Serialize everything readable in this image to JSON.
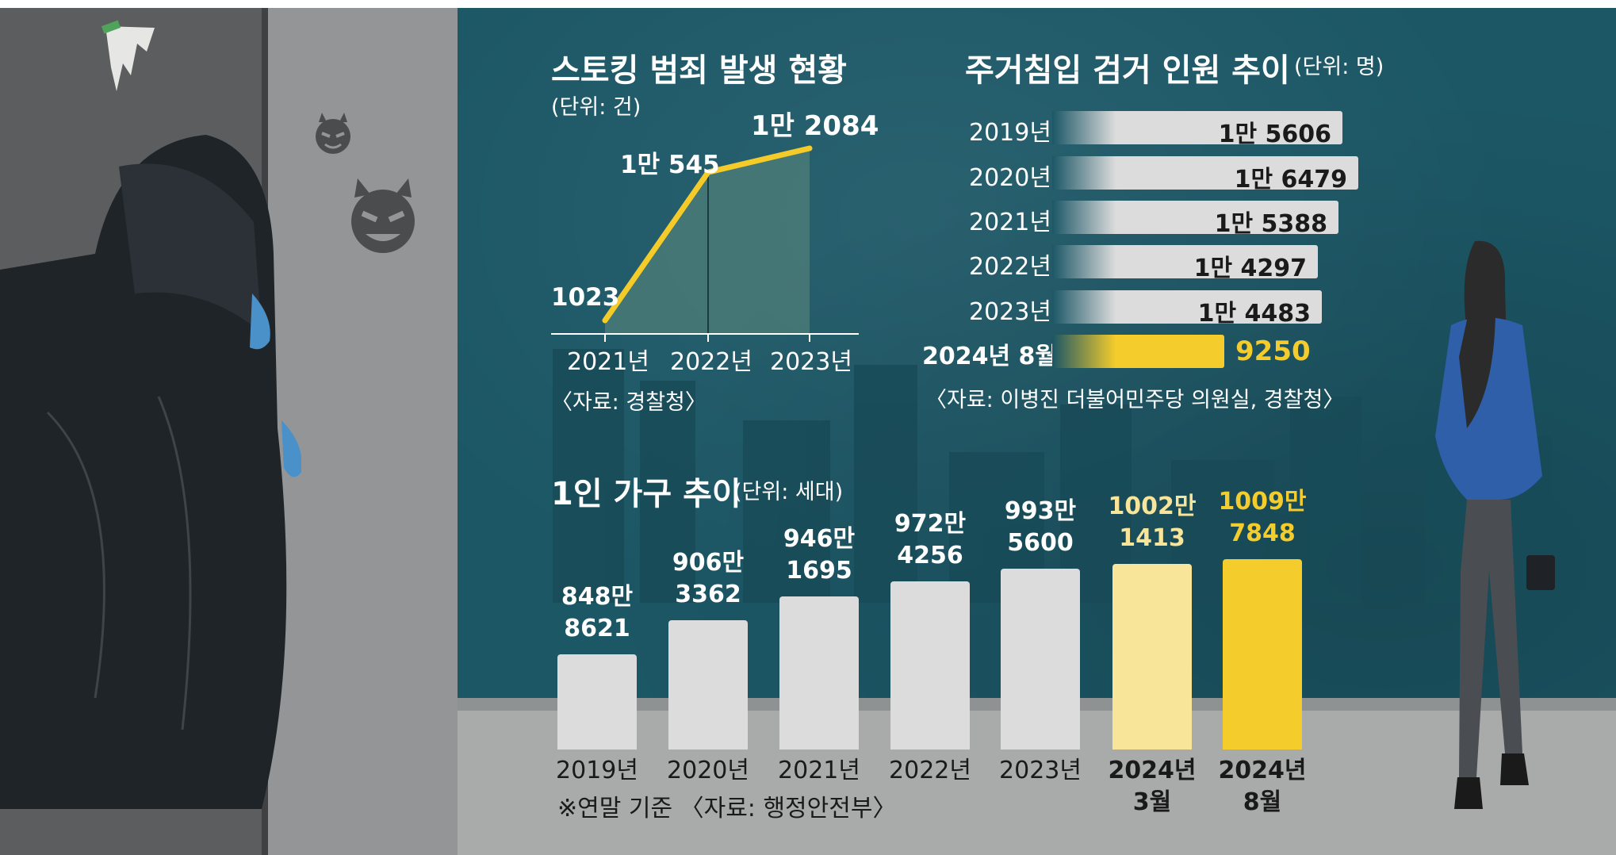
{
  "colors": {
    "panel_bg": "#1c5766",
    "panel_dark": "#143f4b",
    "ground": "#a9abaa",
    "bar_gray": "#dcdcdc",
    "accent_yellow": "#f4cc2c",
    "light_yellow": "#f9e59a",
    "line_yellow": "#f5cb2a",
    "text_dark": "#1a1a1a"
  },
  "stalking": {
    "title": "스토킹 범죄 발생 현황",
    "unit": "(단위: 건)",
    "source": "〈자료: 경찰청〉"
  },
  "intrusion": {
    "title": "주거침입 검거 인원 추이",
    "unit": "(단위: 명)",
    "source": "〈자료: 이병진 더불어민주당 의원실, 경찰청〉"
  },
  "households": {
    "title": "1인 가구 추이",
    "unit": "(단위: 세대)",
    "footnote": "※연말 기준  〈자료: 행정안전부〉"
  },
  "chart_data": [
    {
      "type": "line",
      "title": "스토킹 범죄 발생 현황",
      "unit": "(단위: 건)",
      "categories": [
        "2021년",
        "2022년",
        "2023년"
      ],
      "values": [
        1023,
        10545,
        12084
      ],
      "value_labels": [
        "1023",
        "1만 545",
        "1만 2084"
      ],
      "ylim": [
        0,
        12084
      ]
    },
    {
      "type": "bar",
      "orientation": "horizontal",
      "title": "주거침입 검거 인원 추이",
      "unit": "(단위: 명)",
      "categories": [
        "2019년",
        "2020년",
        "2021년",
        "2022년",
        "2023년",
        "2024년 8월"
      ],
      "values": [
        15606,
        16479,
        15388,
        14297,
        14483,
        9250
      ],
      "value_labels": [
        "1만 5606",
        "1만 6479",
        "1만 5388",
        "1만 4297",
        "1만 4483",
        "9250"
      ],
      "highlight_index": 5
    },
    {
      "type": "bar",
      "title": "1인 가구 추이",
      "unit": "(단위: 세대)",
      "categories": [
        "2019년",
        "2020년",
        "2021년",
        "2022년",
        "2023년",
        "2024년\n3월",
        "2024년\n8월"
      ],
      "values": [
        8488621,
        9063362,
        9461695,
        9724256,
        9935600,
        10021413,
        10097848
      ],
      "value_labels": [
        "848만\n8621",
        "906만\n3362",
        "946만\n1695",
        "972만\n4256",
        "993만\n5600",
        "1002만\n1413",
        "1009만\n7848"
      ],
      "ylim": [
        8000000,
        10100000
      ]
    }
  ]
}
